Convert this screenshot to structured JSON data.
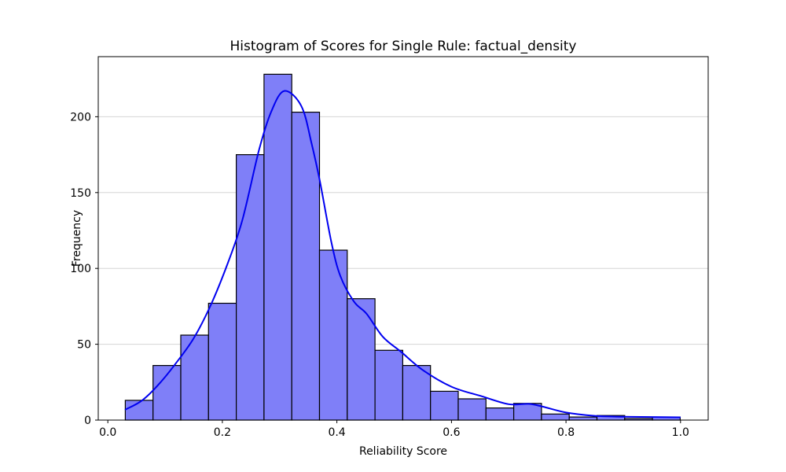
{
  "chart_data": {
    "type": "bar",
    "subtype": "histogram_with_kde",
    "title": "Histogram of Scores for Single Rule: factual_density",
    "xlabel": "Reliability Score",
    "ylabel": "Frequency",
    "xlim": [
      -0.0167,
      1.0483
    ],
    "ylim": [
      0,
      239.6
    ],
    "grid": "horizontal",
    "legend": "none",
    "xticks": [
      {
        "value": 0.0,
        "label": "0.0"
      },
      {
        "value": 0.2,
        "label": "0.2"
      },
      {
        "value": 0.4,
        "label": "0.4"
      },
      {
        "value": 0.6,
        "label": "0.6"
      },
      {
        "value": 0.8,
        "label": "0.8"
      },
      {
        "value": 1.0,
        "label": "1.0"
      }
    ],
    "yticks": [
      {
        "value": 0,
        "label": "0"
      },
      {
        "value": 50,
        "label": "50"
      },
      {
        "value": 100,
        "label": "100"
      },
      {
        "value": 150,
        "label": "150"
      },
      {
        "value": 200,
        "label": "200"
      }
    ],
    "histogram": {
      "bin_start": 0.0305,
      "bin_width": 0.04845,
      "counts": [
        13,
        36,
        56,
        77,
        175,
        228,
        203,
        112,
        80,
        46,
        36,
        19,
        14,
        8,
        11,
        4,
        2,
        3,
        1,
        2
      ]
    },
    "kde_curve": [
      [
        0.031,
        7
      ],
      [
        0.06,
        13
      ],
      [
        0.09,
        24
      ],
      [
        0.12,
        38
      ],
      [
        0.15,
        54
      ],
      [
        0.18,
        76
      ],
      [
        0.21,
        104
      ],
      [
        0.235,
        132
      ],
      [
        0.264,
        178
      ],
      [
        0.285,
        203
      ],
      [
        0.308,
        217
      ],
      [
        0.338,
        207
      ],
      [
        0.356,
        182
      ],
      [
        0.37,
        158
      ],
      [
        0.39,
        118
      ],
      [
        0.406,
        95
      ],
      [
        0.43,
        78
      ],
      [
        0.452,
        70
      ],
      [
        0.48,
        55
      ],
      [
        0.512,
        45
      ],
      [
        0.55,
        33
      ],
      [
        0.6,
        22
      ],
      [
        0.65,
        16
      ],
      [
        0.7,
        10.5
      ],
      [
        0.735,
        10.7
      ],
      [
        0.76,
        8.8
      ],
      [
        0.8,
        5.0
      ],
      [
        0.85,
        2.8
      ],
      [
        0.9,
        2.2
      ],
      [
        0.95,
        2.0
      ],
      [
        0.999,
        1.8
      ]
    ],
    "colors": {
      "bar_fill": "#7f7ff8",
      "bar_edge": "#000000",
      "kde_line": "#0000f0",
      "grid_line": "#d5d5d5",
      "spine": "#000000",
      "background": "#ffffff"
    }
  }
}
